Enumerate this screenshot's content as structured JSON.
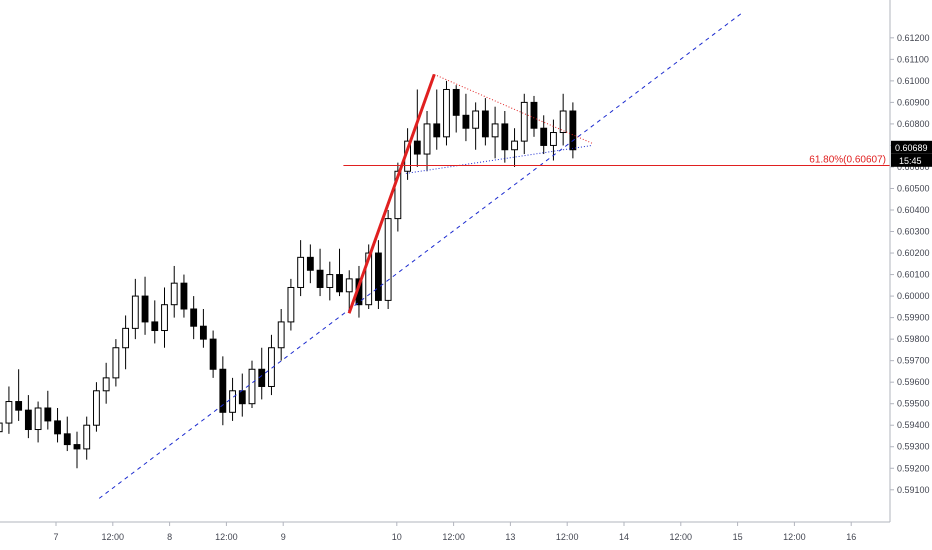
{
  "chart_data": {
    "type": "candlestick",
    "instrument": "",
    "ylim": [
      0.5902,
      0.6132
    ],
    "y_ticks": [
      "0.61200",
      "0.61100",
      "0.61000",
      "0.60900",
      "0.60800",
      "0.60700",
      "0.60600",
      "0.60500",
      "0.60400",
      "0.60300",
      "0.60200",
      "0.60100",
      "0.60000",
      "0.59900",
      "0.59800",
      "0.59700",
      "0.59600",
      "0.59500",
      "0.59400",
      "0.59300",
      "0.59200",
      "0.59100"
    ],
    "x_ticks": [
      {
        "label": "7",
        "t": 0.0
      },
      {
        "label": "12:00",
        "t": 0.5
      },
      {
        "label": "8",
        "t": 1.0
      },
      {
        "label": "12:00",
        "t": 1.5
      },
      {
        "label": "9",
        "t": 2.0
      },
      {
        "label": "10",
        "t": 3.0
      },
      {
        "label": "12:00",
        "t": 3.5
      },
      {
        "label": "13",
        "t": 4.0
      },
      {
        "label": "12:00",
        "t": 4.5
      },
      {
        "label": "14",
        "t": 5.0
      },
      {
        "label": "12:00",
        "t": 5.5
      },
      {
        "label": "15",
        "t": 6.0
      },
      {
        "label": "12:00",
        "t": 6.5
      },
      {
        "label": "16",
        "t": 7.0
      }
    ],
    "candles_ohlc": [
      [
        0.5937,
        0.5946,
        0.5931,
        0.5941
      ],
      [
        0.5941,
        0.5958,
        0.5936,
        0.5951
      ],
      [
        0.5951,
        0.5966,
        0.5942,
        0.5947
      ],
      [
        0.5947,
        0.5954,
        0.5934,
        0.5938
      ],
      [
        0.5938,
        0.5951,
        0.5932,
        0.5948
      ],
      [
        0.5948,
        0.5956,
        0.5938,
        0.5942
      ],
      [
        0.5942,
        0.5948,
        0.5932,
        0.5936
      ],
      [
        0.5936,
        0.5944,
        0.5928,
        0.5931
      ],
      [
        0.5931,
        0.5937,
        0.592,
        0.5929
      ],
      [
        0.5929,
        0.5944,
        0.5924,
        0.594
      ],
      [
        0.594,
        0.596,
        0.5937,
        0.5956
      ],
      [
        0.5956,
        0.5969,
        0.595,
        0.5962
      ],
      [
        0.5962,
        0.598,
        0.5958,
        0.5976
      ],
      [
        0.5976,
        0.5991,
        0.5966,
        0.5985
      ],
      [
        0.5985,
        0.6008,
        0.598,
        0.6
      ],
      [
        0.6,
        0.6009,
        0.5982,
        0.5988
      ],
      [
        0.5988,
        0.5998,
        0.5978,
        0.5984
      ],
      [
        0.5984,
        0.6004,
        0.5976,
        0.5996
      ],
      [
        0.5996,
        0.6014,
        0.599,
        0.6006
      ],
      [
        0.6006,
        0.601,
        0.599,
        0.5994
      ],
      [
        0.5994,
        0.6,
        0.598,
        0.5986
      ],
      [
        0.5986,
        0.5994,
        0.5976,
        0.598
      ],
      [
        0.598,
        0.5984,
        0.5962,
        0.5966
      ],
      [
        0.5966,
        0.5972,
        0.594,
        0.5946
      ],
      [
        0.5946,
        0.5962,
        0.5942,
        0.5956
      ],
      [
        0.5956,
        0.5964,
        0.5944,
        0.595
      ],
      [
        0.595,
        0.597,
        0.5948,
        0.5966
      ],
      [
        0.5966,
        0.5976,
        0.5952,
        0.5958
      ],
      [
        0.5958,
        0.5982,
        0.5954,
        0.5976
      ],
      [
        0.5976,
        0.5994,
        0.597,
        0.5988
      ],
      [
        0.5988,
        0.6008,
        0.5984,
        0.6004
      ],
      [
        0.6004,
        0.6026,
        0.6,
        0.6018
      ],
      [
        0.6018,
        0.6024,
        0.6006,
        0.6012
      ],
      [
        0.6012,
        0.6022,
        0.6,
        0.6004
      ],
      [
        0.6004,
        0.6016,
        0.5998,
        0.601
      ],
      [
        0.601,
        0.6022,
        0.6,
        0.6002
      ],
      [
        0.6002,
        0.6012,
        0.5994,
        0.6008
      ],
      [
        0.6008,
        0.6014,
        0.599,
        0.5996
      ],
      [
        0.5996,
        0.6024,
        0.5994,
        0.602
      ],
      [
        0.602,
        0.6026,
        0.5994,
        0.5998
      ],
      [
        0.5998,
        0.604,
        0.5994,
        0.6036
      ],
      [
        0.6036,
        0.6062,
        0.603,
        0.6058
      ],
      [
        0.6058,
        0.6078,
        0.6054,
        0.6072
      ],
      [
        0.6072,
        0.6096,
        0.606,
        0.6066
      ],
      [
        0.6066,
        0.6086,
        0.6058,
        0.608
      ],
      [
        0.608,
        0.6096,
        0.6068,
        0.6074
      ],
      [
        0.6074,
        0.61,
        0.607,
        0.6096
      ],
      [
        0.6096,
        0.6098,
        0.6076,
        0.6084
      ],
      [
        0.6084,
        0.6094,
        0.6072,
        0.6078
      ],
      [
        0.6078,
        0.609,
        0.6068,
        0.6086
      ],
      [
        0.6086,
        0.6092,
        0.607,
        0.6074
      ],
      [
        0.6074,
        0.6088,
        0.6064,
        0.608
      ],
      [
        0.608,
        0.6086,
        0.6062,
        0.6068
      ],
      [
        0.6068,
        0.6078,
        0.606,
        0.6072
      ],
      [
        0.6072,
        0.6094,
        0.6066,
        0.609
      ],
      [
        0.609,
        0.6093,
        0.6074,
        0.6078
      ],
      [
        0.6078,
        0.6084,
        0.6066,
        0.607
      ],
      [
        0.607,
        0.6082,
        0.6063,
        0.6076
      ],
      [
        0.6076,
        0.6094,
        0.607,
        0.6086
      ],
      [
        0.6086,
        0.609,
        0.6064,
        0.6068
      ]
    ],
    "last_price": "0.60689",
    "countdown": "15:45",
    "fib_level_label": "61.80%(0.60607)",
    "fib_level_value": 0.60607,
    "colors": {
      "candle_up": "#ffffff",
      "candle_down": "#000000",
      "candle_border": "#000000",
      "trend_line": "#1c2bcf",
      "impulse_line": "#e02020",
      "fib_line": "#e02020",
      "price_tag_bg": "#000000",
      "grid_axis": "#b2b5be"
    }
  }
}
